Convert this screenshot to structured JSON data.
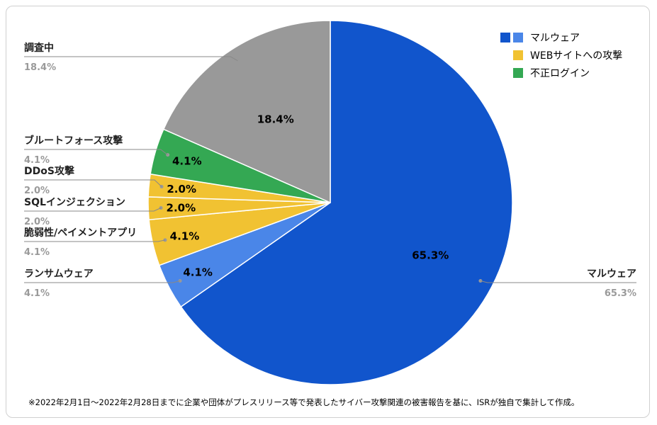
{
  "chart_data": {
    "type": "pie",
    "title": "",
    "slices": [
      {
        "label": "マルウェア",
        "value": 65.3,
        "display": "65.3%",
        "color": "#1155cc",
        "group": "マルウェア"
      },
      {
        "label": "ランサムウェア",
        "value": 4.1,
        "display": "4.1%",
        "color": "#4a86e8",
        "group": "マルウェア"
      },
      {
        "label": "脆弱性/ペイメントアプリ",
        "value": 4.1,
        "display": "4.1%",
        "color": "#f1c232",
        "group": "WEBサイトへの攻撃"
      },
      {
        "label": "SQLインジェクション",
        "value": 2.0,
        "display": "2.0%",
        "color": "#f1c232",
        "group": "WEBサイトへの攻撃"
      },
      {
        "label": "DDoS攻撃",
        "value": 2.0,
        "display": "2.0%",
        "color": "#f1c232",
        "group": "WEBサイトへの攻撃"
      },
      {
        "label": "ブルートフォース攻撃",
        "value": 4.1,
        "display": "4.1%",
        "color": "#34a853",
        "group": "不正ログイン"
      },
      {
        "label": "調査中",
        "value": 18.4,
        "display": "18.4%",
        "color": "#999999",
        "group": ""
      }
    ],
    "legend": {
      "position": "top-right",
      "entries": [
        {
          "label": "マルウェア",
          "colors": [
            "#1155cc",
            "#4a86e8"
          ]
        },
        {
          "label": "WEBサイトへの攻撃",
          "colors": [
            "#f1c232"
          ]
        },
        {
          "label": "不正ログイン",
          "colors": [
            "#34a853"
          ]
        }
      ]
    }
  },
  "footnote": "※2022年2月1日〜2022年2月28日までに企業や団体がプレスリリース等で発表したサイバー攻撃関連の被害報告を基に、ISRが独自で集計して作成。"
}
